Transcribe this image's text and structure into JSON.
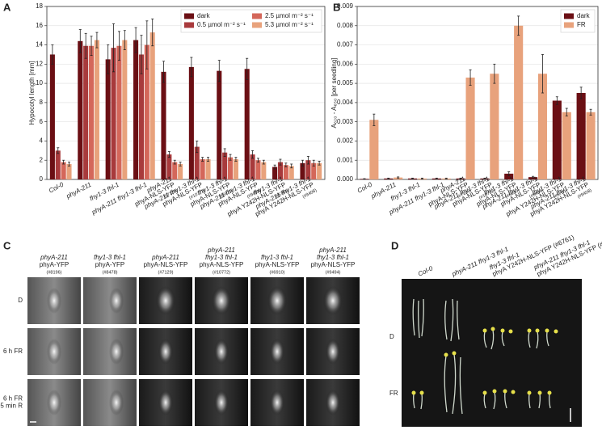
{
  "panel_letters": [
    "A",
    "B",
    "C",
    "D"
  ],
  "chart_data": [
    {
      "type": "bar",
      "ylabel": "Hypocotyl length [mm]",
      "categories": [
        [
          "Col-0"
        ],
        [
          "phyA-211"
        ],
        [
          "fhy1-3 fhl-1"
        ],
        [
          "phyA-211 fhy1-3 fhl-1"
        ],
        [
          "phyA-211",
          "phyA-NLS-YFP",
          "(#7129)"
        ],
        [
          "phyA-211 fhy1-3 fhl-1",
          "phyA-NLS-YFP",
          "(#10772)"
        ],
        [
          "fhy1-3 fhl-1",
          "phyA-NLS-YFP",
          "(#6910)"
        ],
        [
          "phyA-211 fhy1-3 fhl-1",
          "phyA-NLS-YFP",
          "(#9494)"
        ],
        [
          "fhy1-3 fhl-1",
          "phyA Y242H-NLS-YFP",
          "(#6761)"
        ],
        [
          "phyA-211 fhy1-3 fhl-1",
          "phyA Y242H-NLS-YFP",
          "(#9408)"
        ]
      ],
      "series": [
        {
          "name": "dark",
          "color": "#6b0f14",
          "values": [
            13.0,
            14.4,
            12.5,
            14.5,
            11.2,
            11.7,
            11.3,
            11.5,
            1.3,
            1.7
          ],
          "errors": [
            1.0,
            1.2,
            1.5,
            1.3,
            1.1,
            1.0,
            1.1,
            1.1,
            0.2,
            0.3
          ]
        },
        {
          "name": "0.5 µmol m⁻² s⁻¹",
          "color": "#a83a3c",
          "values": [
            3.0,
            13.9,
            13.7,
            13.0,
            2.6,
            3.4,
            2.8,
            2.6,
            1.8,
            2.0
          ],
          "errors": [
            0.3,
            1.3,
            2.5,
            2.0,
            0.3,
            0.6,
            0.4,
            0.4,
            0.3,
            0.4
          ]
        },
        {
          "name": "2.5 µmol m⁻² s⁻¹",
          "color": "#d4675a",
          "values": [
            1.8,
            13.9,
            13.9,
            14.0,
            1.8,
            2.1,
            2.3,
            2.0,
            1.5,
            1.7
          ],
          "errors": [
            0.2,
            1.0,
            1.5,
            2.5,
            0.2,
            0.2,
            0.3,
            0.2,
            0.2,
            0.3
          ]
        },
        {
          "name": "5.3 µmol m⁻² s⁻¹",
          "color": "#e8a27c",
          "values": [
            1.6,
            14.5,
            14.5,
            15.3,
            1.6,
            2.1,
            2.1,
            1.8,
            1.4,
            1.7
          ],
          "errors": [
            0.2,
            0.8,
            1.0,
            1.4,
            0.2,
            0.2,
            0.2,
            0.2,
            0.2,
            0.2
          ]
        }
      ],
      "ylim": [
        0,
        18
      ],
      "yticks": [
        0,
        2,
        4,
        6,
        8,
        10,
        12,
        14,
        16,
        18
      ],
      "grid": true,
      "legend": "upper right",
      "legend_columns": 2
    },
    {
      "type": "bar",
      "ylabel": "A₆₂₀ - A₆₅₀ [per seedling]",
      "categories": [
        [
          "Col-0"
        ],
        [
          "phyA-211"
        ],
        [
          "fhy1-3 fhl-1"
        ],
        [
          "phyA-211 fhy1-3 fhl-1"
        ],
        [
          "phyA-211",
          "phyA-NLS-YFP",
          "(#7129)"
        ],
        [
          "phyA-211 fhy1-3 fhl-1",
          "phyA-NLS-YFP",
          "(#10772)"
        ],
        [
          "fhy1-3 fhl-1",
          "phyA-NLS-YFP",
          "(#6910)"
        ],
        [
          "phyA-211 fhy1-3 fhl-1",
          "phyA-NLS-YFP",
          "(#9494)"
        ],
        [
          "fhy1-3 fhl-1",
          "phyA Y242H-NLS-YFP",
          "(#6761)"
        ],
        [
          "phyA-211 fhy1-3 fhl-1",
          "phyA Y242H-NLS-YFP",
          "(#9408)"
        ]
      ],
      "series": [
        {
          "name": "dark",
          "color": "#6b0f14",
          "values": [
            3e-05,
            5e-05,
            5e-05,
            5e-05,
            5e-05,
            5e-05,
            0.0003,
            0.00012,
            0.0041,
            0.0045
          ],
          "errors": [
            1e-05,
            2e-05,
            2e-05,
            2e-05,
            2e-05,
            2e-05,
            0.0001,
            4e-05,
            0.0002,
            0.0003
          ]
        },
        {
          "name": "FR",
          "color": "#e8a27c",
          "values": [
            0.0031,
            0.0001,
            5e-05,
            5e-05,
            0.0053,
            0.0055,
            0.008,
            0.0055,
            0.0035,
            0.0035
          ],
          "errors": [
            0.0003,
            3e-05,
            2e-05,
            2e-05,
            0.0004,
            0.0005,
            0.0005,
            0.001,
            0.0002,
            0.00015
          ]
        }
      ],
      "ylim": [
        0,
        0.009
      ],
      "yticks": [
        {
          "value": 0,
          "label": "0.000"
        },
        {
          "value": 0.001,
          "label": "0.001"
        },
        {
          "value": 0.002,
          "label": "0.002"
        },
        {
          "value": 0.003,
          "label": "0.003"
        },
        {
          "value": 0.004,
          "label": "0.004"
        },
        {
          "value": 0.005,
          "label": "0.005"
        },
        {
          "value": 0.006,
          "label": "0.006"
        },
        {
          "value": 0.007,
          "label": "0.007"
        },
        {
          "value": 0.008,
          "label": "0.008"
        },
        {
          "value": 0.009,
          "label": "0.009"
        }
      ],
      "grid": true,
      "legend": "upper right",
      "legend_columns": 1
    }
  ],
  "micrographs": {
    "columns": [
      [
        "phyA-211",
        "phyA-YFP",
        "(#8196)"
      ],
      [
        "fhy1-3 fhl-1",
        "phyA-YFP",
        "(#8478)"
      ],
      [
        "phyA-211",
        "phyA-NLS-YFP",
        "(#7129)"
      ],
      [
        "phyA-211",
        "fhy1-3 fhl-1",
        "phyA-NLS-YFP",
        "(#10772)"
      ],
      [
        "fhy1-3 fhl-1",
        "phyA-NLS-YFP",
        "(#6910)"
      ],
      [
        "phyA-211",
        "fhy1-3 fhl-1",
        "phyA-NLS-YFP",
        "(#9494)"
      ]
    ],
    "rows": [
      [
        "D"
      ],
      [
        "6 h FR"
      ],
      [
        "6 h FR",
        "+ 5 min R"
      ]
    ]
  },
  "seedlings": {
    "columns": [
      [
        "Col-0"
      ],
      [
        "phyA-211 fhy1-3 fhl-1"
      ],
      [
        "fhy1-3 fhl-1",
        "phyA Y242H-NLS-YFP (#6761)"
      ],
      [
        "phyA-211 fhy1-3 fhl-1",
        "phyA Y242H-NLS-YFP (#9408)"
      ]
    ],
    "rows": [
      "D",
      "FR"
    ]
  }
}
